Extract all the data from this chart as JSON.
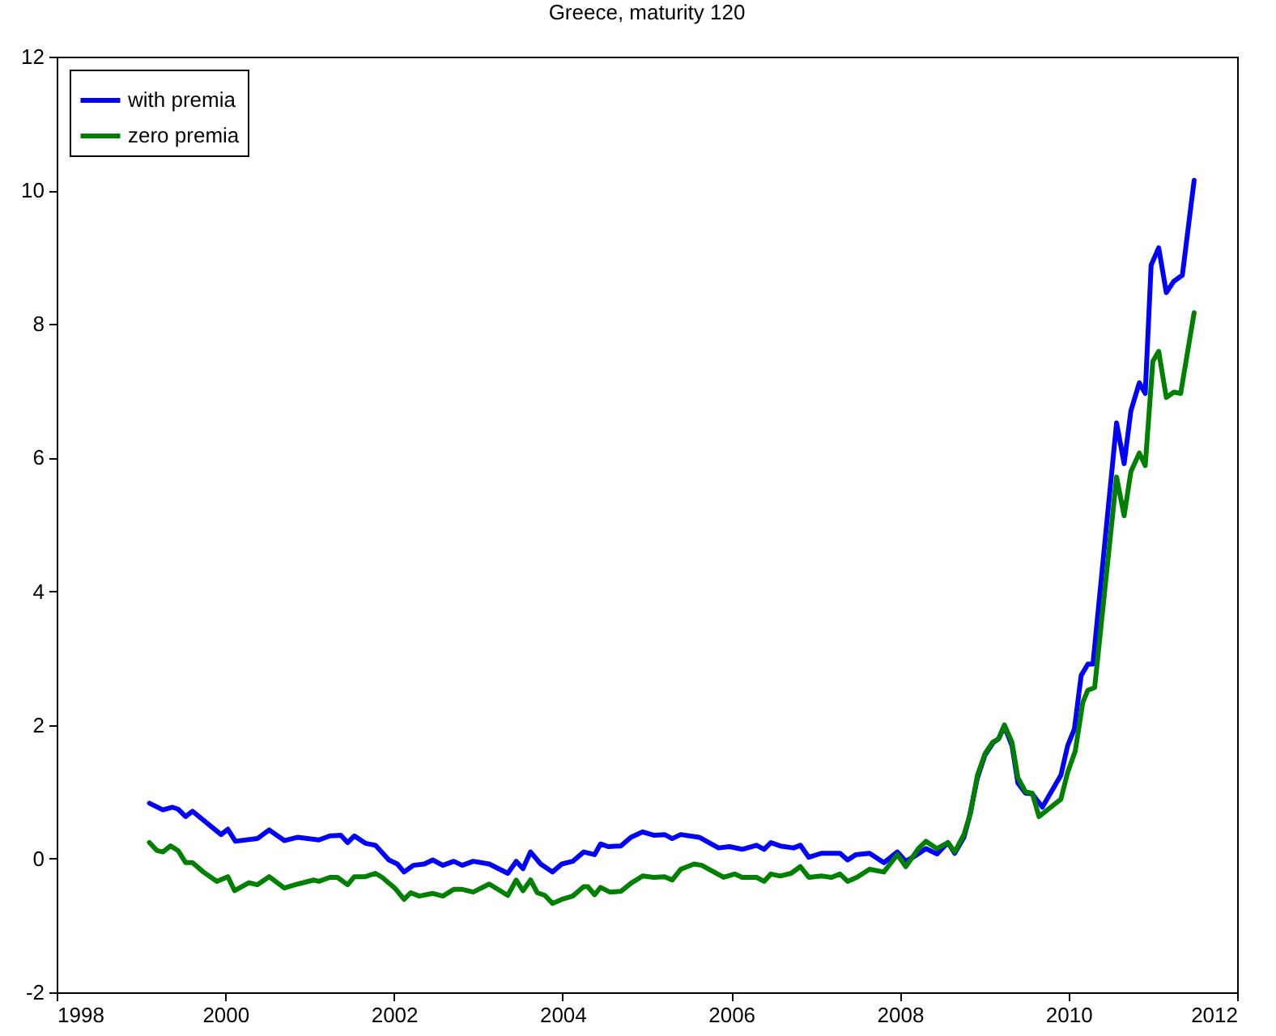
{
  "chart_data": {
    "type": "line",
    "title": "Greece, maturity 120",
    "xlim": [
      1998,
      2012
    ],
    "xticks": [
      1998,
      2000,
      2002,
      2004,
      2006,
      2008,
      2010,
      2012
    ],
    "ylim": [
      -2,
      12
    ],
    "yticks": [
      -2,
      0,
      2,
      4,
      6,
      8,
      10,
      12
    ],
    "grid": false,
    "legend": "top left",
    "line_style": "solid",
    "series": [
      {
        "name": "with premia",
        "color": "#0000ff",
        "x": [
          1999.1,
          1999.26,
          1999.37,
          1999.44,
          1999.53,
          1999.61,
          1999.95,
          2000.03,
          2000.12,
          2000.38,
          2000.52,
          2000.7,
          2000.86,
          2001.11,
          2001.24,
          2001.37,
          2001.45,
          2001.53,
          2001.66,
          2001.78,
          2001.94,
          2002.04,
          2002.12,
          2002.23,
          2002.36,
          2002.46,
          2002.58,
          2002.71,
          2002.81,
          2002.94,
          2003.13,
          2003.35,
          2003.45,
          2003.53,
          2003.62,
          2003.74,
          2003.88,
          2003.99,
          2004.12,
          2004.25,
          2004.38,
          2004.45,
          2004.54,
          2004.69,
          2004.81,
          2004.95,
          2005.08,
          2005.21,
          2005.3,
          2005.4,
          2005.62,
          2005.85,
          2005.98,
          2006.13,
          2006.3,
          2006.39,
          2006.47,
          2006.58,
          2006.74,
          2006.82,
          2006.92,
          2007.07,
          2007.29,
          2007.38,
          2007.48,
          2007.64,
          2007.81,
          2007.97,
          2008.07,
          2008.18,
          2008.31,
          2008.44,
          2008.57,
          2008.65,
          2008.76,
          2008.82,
          2008.92,
          2009.01,
          2009.11,
          2009.17,
          2009.24,
          2009.33,
          2009.4,
          2009.49,
          2009.57,
          2009.69,
          2009.91,
          2009.99,
          2010.07,
          2010.15,
          2010.23,
          2010.29,
          2010.57,
          2010.66,
          2010.74,
          2010.84,
          2010.91,
          2010.98,
          2011.07,
          2011.16,
          2011.25,
          2011.35,
          2011.49
        ],
        "values": [
          0.83,
          0.73,
          0.77,
          0.74,
          0.63,
          0.71,
          0.36,
          0.44,
          0.26,
          0.3,
          0.43,
          0.27,
          0.32,
          0.28,
          0.34,
          0.35,
          0.24,
          0.34,
          0.23,
          0.2,
          -0.02,
          -0.08,
          -0.2,
          -0.1,
          -0.08,
          -0.02,
          -0.1,
          -0.04,
          -0.1,
          -0.04,
          -0.08,
          -0.22,
          -0.04,
          -0.15,
          0.1,
          -0.08,
          -0.2,
          -0.08,
          -0.04,
          0.1,
          0.06,
          0.22,
          0.18,
          0.19,
          0.32,
          0.4,
          0.35,
          0.36,
          0.3,
          0.36,
          0.32,
          0.16,
          0.18,
          0.14,
          0.2,
          0.14,
          0.24,
          0.19,
          0.16,
          0.2,
          0.02,
          0.08,
          0.08,
          -0.02,
          0.06,
          0.08,
          -0.06,
          0.1,
          -0.04,
          0.04,
          0.15,
          0.07,
          0.24,
          0.08,
          0.32,
          0.6,
          1.21,
          1.55,
          1.74,
          1.79,
          1.98,
          1.69,
          1.13,
          0.98,
          0.97,
          0.77,
          1.25,
          1.69,
          1.94,
          2.74,
          2.91,
          2.91,
          6.52,
          5.91,
          6.7,
          7.12,
          6.96,
          8.88,
          9.14,
          8.47,
          8.64,
          8.73,
          10.15
        ]
      },
      {
        "name": "zero premia",
        "color": "#008000",
        "x": [
          1999.1,
          1999.19,
          1999.26,
          1999.35,
          1999.44,
          1999.53,
          1999.61,
          1999.74,
          1999.9,
          2000.03,
          2000.11,
          2000.28,
          2000.38,
          2000.52,
          2000.7,
          2000.86,
          2001.05,
          2001.11,
          2001.24,
          2001.33,
          2001.45,
          2001.53,
          2001.66,
          2001.78,
          2001.86,
          2002.01,
          2002.12,
          2002.2,
          2002.3,
          2002.46,
          2002.58,
          2002.71,
          2002.81,
          2002.94,
          2003.13,
          2003.35,
          2003.45,
          2003.53,
          2003.62,
          2003.7,
          2003.79,
          2003.88,
          2003.99,
          2004.12,
          2004.25,
          2004.3,
          2004.38,
          2004.45,
          2004.56,
          2004.69,
          2004.81,
          2004.95,
          2005.08,
          2005.21,
          2005.3,
          2005.4,
          2005.56,
          2005.65,
          2005.91,
          2006.04,
          2006.13,
          2006.3,
          2006.39,
          2006.47,
          2006.58,
          2006.71,
          2006.82,
          2006.92,
          2007.07,
          2007.19,
          2007.29,
          2007.38,
          2007.49,
          2007.64,
          2007.81,
          2007.97,
          2008.07,
          2008.22,
          2008.31,
          2008.44,
          2008.57,
          2008.65,
          2008.76,
          2008.84,
          2008.92,
          2009.01,
          2009.1,
          2009.17,
          2009.24,
          2009.33,
          2009.4,
          2009.49,
          2009.57,
          2009.65,
          2009.91,
          2009.99,
          2010.08,
          2010.17,
          2010.23,
          2010.31,
          2010.57,
          2010.66,
          2010.74,
          2010.84,
          2010.91,
          2011.0,
          2011.07,
          2011.16,
          2011.25,
          2011.33,
          2011.49
        ],
        "values": [
          0.24,
          0.12,
          0.1,
          0.19,
          0.12,
          -0.06,
          -0.06,
          -0.2,
          -0.34,
          -0.27,
          -0.48,
          -0.36,
          -0.39,
          -0.27,
          -0.44,
          -0.38,
          -0.32,
          -0.34,
          -0.28,
          -0.28,
          -0.39,
          -0.27,
          -0.27,
          -0.22,
          -0.28,
          -0.44,
          -0.61,
          -0.51,
          -0.56,
          -0.52,
          -0.56,
          -0.46,
          -0.46,
          -0.5,
          -0.38,
          -0.55,
          -0.32,
          -0.48,
          -0.32,
          -0.51,
          -0.55,
          -0.67,
          -0.61,
          -0.56,
          -0.42,
          -0.42,
          -0.54,
          -0.43,
          -0.5,
          -0.49,
          -0.37,
          -0.26,
          -0.28,
          -0.27,
          -0.32,
          -0.16,
          -0.08,
          -0.1,
          -0.28,
          -0.23,
          -0.28,
          -0.28,
          -0.34,
          -0.23,
          -0.26,
          -0.22,
          -0.12,
          -0.28,
          -0.26,
          -0.28,
          -0.23,
          -0.34,
          -0.28,
          -0.16,
          -0.2,
          0.06,
          -0.12,
          0.15,
          0.26,
          0.15,
          0.24,
          0.1,
          0.36,
          0.69,
          1.25,
          1.57,
          1.74,
          1.79,
          2.0,
          1.74,
          1.21,
          1.0,
          0.98,
          0.63,
          0.89,
          1.29,
          1.61,
          2.34,
          2.52,
          2.56,
          5.71,
          5.13,
          5.79,
          6.07,
          5.88,
          7.44,
          7.59,
          6.9,
          6.98,
          6.96,
          8.17
        ]
      }
    ]
  }
}
